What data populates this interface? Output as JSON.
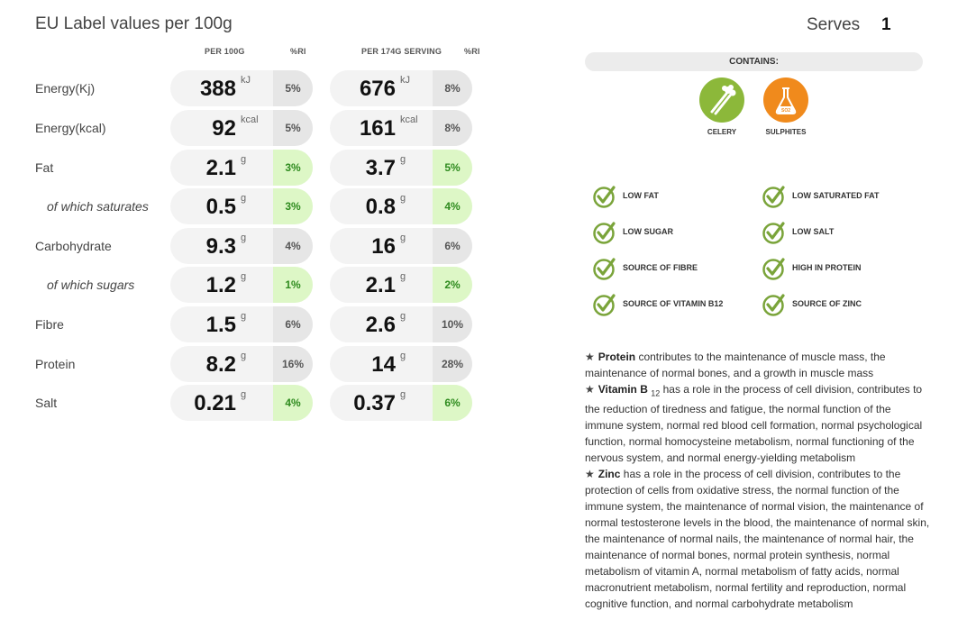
{
  "header": {
    "title": "EU Label values per 100g",
    "serves_label": "Serves",
    "serves_value": "1"
  },
  "columns": {
    "per100": "PER 100G",
    "ri1": "%RI",
    "perserving": "PER 174G SERVING",
    "ri2": "%RI"
  },
  "nutrients": [
    {
      "label": "Energy(Kj)",
      "sub": false,
      "v1": "388",
      "u1": "kJ",
      "ri1": "5%",
      "hl1": false,
      "v2": "676",
      "u2": "kJ",
      "ri2": "8%",
      "hl2": false
    },
    {
      "label": "Energy(kcal)",
      "sub": false,
      "v1": "92",
      "u1": "kcal",
      "ri1": "5%",
      "hl1": false,
      "v2": "161",
      "u2": "kcal",
      "ri2": "8%",
      "hl2": false
    },
    {
      "label": "Fat",
      "sub": false,
      "v1": "2.1",
      "u1": "g",
      "ri1": "3%",
      "hl1": true,
      "v2": "3.7",
      "u2": "g",
      "ri2": "5%",
      "hl2": true
    },
    {
      "label": "of which saturates",
      "sub": true,
      "v1": "0.5",
      "u1": "g",
      "ri1": "3%",
      "hl1": true,
      "v2": "0.8",
      "u2": "g",
      "ri2": "4%",
      "hl2": true
    },
    {
      "label": "Carbohydrate",
      "sub": false,
      "v1": "9.3",
      "u1": "g",
      "ri1": "4%",
      "hl1": false,
      "v2": "16",
      "u2": "g",
      "ri2": "6%",
      "hl2": false
    },
    {
      "label": "of which sugars",
      "sub": true,
      "v1": "1.2",
      "u1": "g",
      "ri1": "1%",
      "hl1": true,
      "v2": "2.1",
      "u2": "g",
      "ri2": "2%",
      "hl2": true
    },
    {
      "label": "Fibre",
      "sub": false,
      "v1": "1.5",
      "u1": "g",
      "ri1": "6%",
      "hl1": false,
      "v2": "2.6",
      "u2": "g",
      "ri2": "10%",
      "hl2": false
    },
    {
      "label": "Protein",
      "sub": false,
      "v1": "8.2",
      "u1": "g",
      "ri1": "16%",
      "hl1": false,
      "v2": "14",
      "u2": "g",
      "ri2": "28%",
      "hl2": false
    },
    {
      "label": "Salt",
      "sub": false,
      "v1": "0.21",
      "u1": "g",
      "ri1": "4%",
      "hl1": true,
      "v2": "0.37",
      "u2": "g",
      "ri2": "6%",
      "hl2": true
    }
  ],
  "contains": {
    "label": "CONTAINS:",
    "allergens": [
      {
        "name": "CELERY",
        "icon": "celery-icon",
        "color": "#8cb83a"
      },
      {
        "name": "SULPHITES",
        "icon": "sulphites-icon",
        "color": "#f08a1c",
        "badge": "SO2"
      }
    ]
  },
  "claims": [
    "LOW FAT",
    "LOW SATURATED FAT",
    "LOW SUGAR",
    "LOW SALT",
    "SOURCE OF FIBRE",
    "HIGH IN PROTEIN",
    "SOURCE OF VITAMIN B12",
    "SOURCE OF ZINC"
  ],
  "claim_color": "#7aa43a",
  "health_claims": [
    {
      "name": "Protein",
      "sub": "",
      "text": "contributes to the maintenance of muscle mass, the maintenance of normal bones, and a growth in muscle mass"
    },
    {
      "name": "Vitamin B",
      "sub": "12",
      "text": "has a role in the process of cell division, contributes to the reduction of tiredness and fatigue, the normal function of the immune system, normal red blood cell formation, normal psychological function, normal homocysteine metabolism, normal functioning of the nervous system, and normal energy-yielding metabolism"
    },
    {
      "name": "Zinc",
      "sub": "",
      "text": "has a role in the process of cell division, contributes to the protection of cells from oxidative stress, the normal function of the immune system, the maintenance of normal vision, the maintenance of normal testosterone levels in the blood, the maintenance of normal skin, the maintenance of normal nails, the maintenance of normal hair, the maintenance of normal bones, normal protein synthesis, normal metabolism of vitamin A, normal metabolism of fatty acids, normal macronutrient metabolism, normal fertility and reproduction, normal cognitive function, and normal carbohydrate metabolism"
    }
  ]
}
